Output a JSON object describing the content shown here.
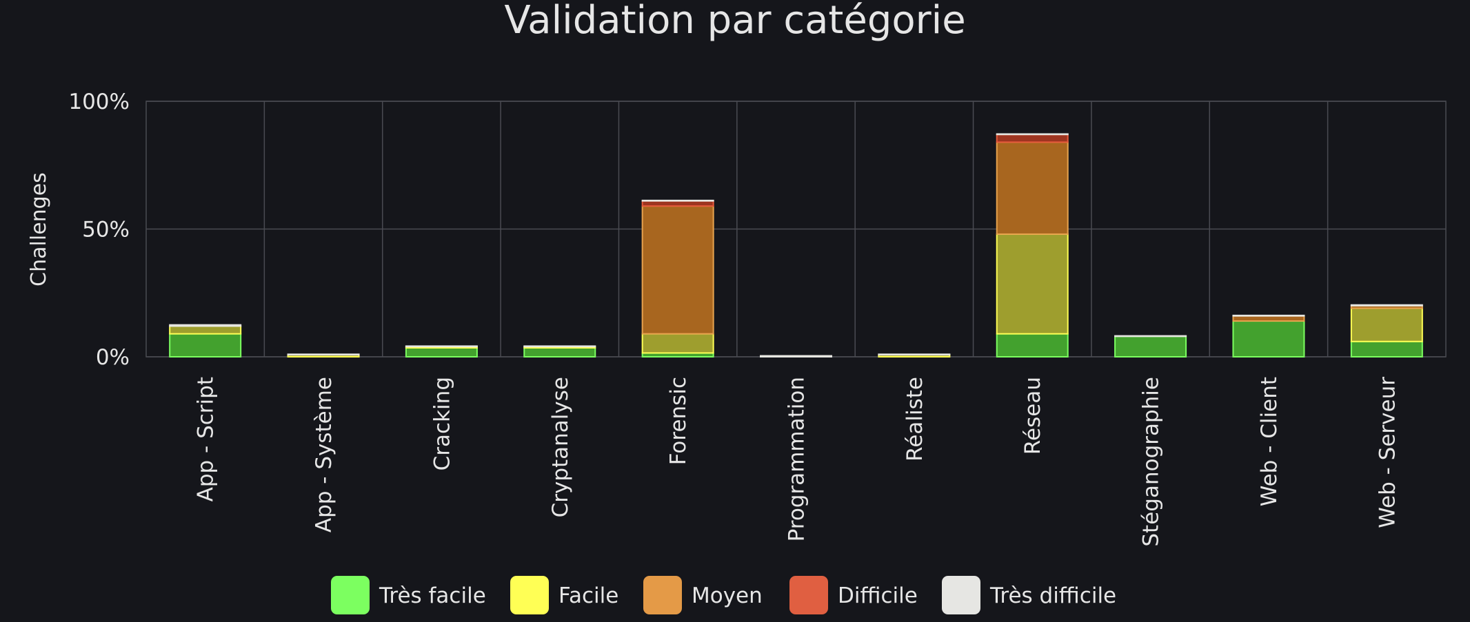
{
  "chart_data": {
    "type": "bar",
    "stacked": true,
    "title": "Validation par catégorie",
    "xlabel": "",
    "ylabel": "Challenges",
    "ylim": [
      0,
      100
    ],
    "yticks": [
      "0%",
      "50%",
      "100%"
    ],
    "ytick_values": [
      0,
      50,
      100
    ],
    "grid": true,
    "legend_position": "bottom",
    "categories": [
      "App - Script",
      "App - Système",
      "Cracking",
      "Cryptanalyse",
      "Forensic",
      "Programmation",
      "Réaliste",
      "Réseau",
      "Stéganographie",
      "Web - Client",
      "Web - Serveur"
    ],
    "series": [
      {
        "name": "Très facile",
        "fill": "#43a12e",
        "stroke": "#7cff60",
        "legend_color": "#7cff60",
        "values": [
          9,
          0,
          3.5,
          3.5,
          1.5,
          0,
          0,
          9,
          8,
          14,
          6
        ]
      },
      {
        "name": "Facile",
        "fill": "#9e9e2e",
        "stroke": "#ffff55",
        "legend_color": "#ffff55",
        "values": [
          3,
          0.8,
          0.5,
          0.5,
          7.5,
          0,
          0.8,
          39,
          0,
          0,
          13
        ]
      },
      {
        "name": "Moyen",
        "fill": "#a8661f",
        "stroke": "#e8a34e",
        "legend_color": "#e49a47",
        "values": [
          0,
          0,
          0,
          0,
          50,
          0,
          0,
          36,
          0,
          2,
          1
        ]
      },
      {
        "name": "Difficile",
        "fill": "#9e3520",
        "stroke": "#e65a3c",
        "legend_color": "#e05f41",
        "values": [
          0,
          0,
          0,
          0,
          2,
          0,
          0,
          3,
          0,
          0,
          0
        ]
      },
      {
        "name": "Très difficile",
        "fill": "#b7b7b2",
        "stroke": "#e6e6e1",
        "legend_color": "#e6e6e3",
        "values": [
          0.5,
          0.2,
          0.2,
          0.2,
          0.2,
          0.4,
          0.2,
          0.2,
          0.2,
          0.2,
          0.3
        ]
      }
    ]
  }
}
